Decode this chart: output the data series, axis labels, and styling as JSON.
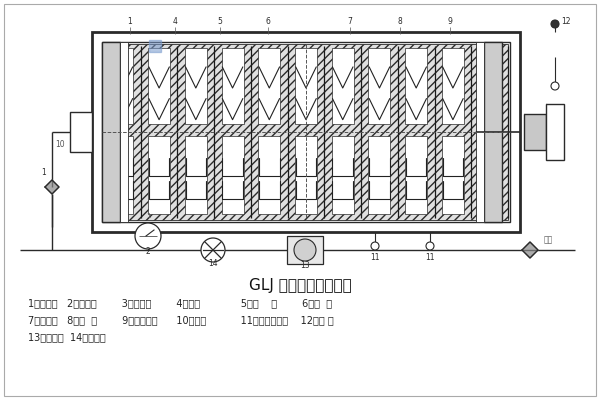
{
  "title": "GLJ 过滤机工作示意图",
  "title_fontsize": 11,
  "legend_lines": [
    "1、管接头   2、压力表        3、止推板        4、滤纸             5、滤    板        6、滤  框",
    "7、压紧板   8、支  架        9、压紧螺杆      10、手把           11、入口管接头    12、浮 筒",
    "13、被滤器  14、排油泵"
  ],
  "lc": "#2a2a2a",
  "bg": "white",
  "gray_light": "#c8c8c8",
  "gray_med": "#aaaaaa",
  "blue_mark": "#7799cc"
}
